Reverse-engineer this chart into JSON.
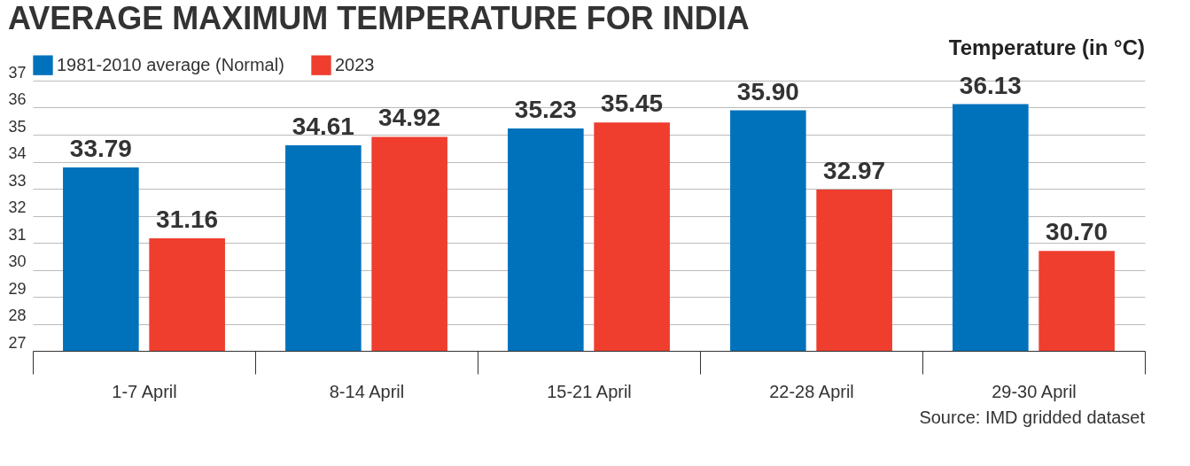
{
  "chart_data": {
    "type": "bar",
    "title": "AVERAGE MAXIMUM TEMPERATURE FOR INDIA",
    "ylabel": "Temperature (in °C)",
    "categories": [
      "1-7 April",
      "8-14 April",
      "15-21 April",
      "22-28 April",
      "29-30 April"
    ],
    "series": [
      {
        "name": "1981-2010 average (Normal)",
        "color": "#0072bc",
        "values": [
          33.79,
          34.61,
          35.23,
          35.9,
          36.13
        ],
        "value_labels": [
          "33.79",
          "34.61",
          "35.23",
          "35.90",
          "36.13"
        ]
      },
      {
        "name": "2023",
        "color": "#ef3e2e",
        "values": [
          31.16,
          34.92,
          35.45,
          32.97,
          30.7
        ],
        "value_labels": [
          "31.16",
          "34.92",
          "35.45",
          "32.97",
          "30.70"
        ]
      }
    ],
    "ylim": [
      27,
      37
    ],
    "yticks": [
      27,
      28,
      29,
      30,
      31,
      32,
      33,
      34,
      35,
      36,
      37
    ],
    "grid": "y",
    "legend": "top left",
    "annotations": [
      "Source: IMD gridded dataset"
    ]
  }
}
